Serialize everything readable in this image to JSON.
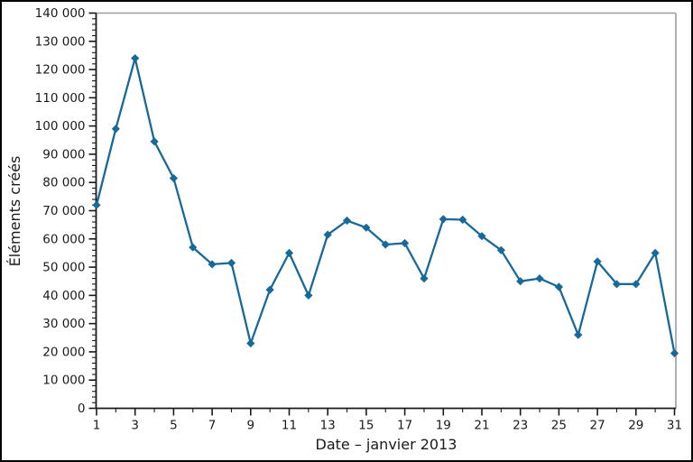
{
  "figure": {
    "background": "#ffffff",
    "border_color": "#000000",
    "frame_color": "#9c9c9c",
    "axis_color": "#1a1a1a",
    "text_color": "#1a1a1a"
  },
  "chart_data": {
    "type": "line",
    "title": "",
    "xlabel": "Date – janvier 2013",
    "ylabel": "Éléments créés",
    "series_color": "#17699a",
    "marker": "diamond",
    "grid": false,
    "legend": "none",
    "xlim": [
      1,
      31
    ],
    "ylim": [
      0,
      140000
    ],
    "y_major_step": 10000,
    "y_minor_step": 2000,
    "x_major_labels_on_odd_days": true,
    "x": [
      1,
      2,
      3,
      4,
      5,
      6,
      7,
      8,
      9,
      10,
      11,
      12,
      13,
      14,
      15,
      16,
      17,
      18,
      19,
      20,
      21,
      22,
      23,
      24,
      25,
      26,
      27,
      28,
      29,
      30,
      31
    ],
    "values": [
      72000,
      99000,
      124000,
      94500,
      81500,
      57000,
      51000,
      51500,
      23000,
      42000,
      55000,
      40000,
      61500,
      66500,
      64000,
      58000,
      58500,
      46000,
      67000,
      66800,
      61000,
      56000,
      45000,
      46000,
      43000,
      26000,
      52000,
      44000,
      44000,
      55000,
      19500
    ],
    "y_tick_labels": [
      "0",
      "10 000",
      "20 000",
      "30 000",
      "40 000",
      "50 000",
      "60 000",
      "70 000",
      "80 000",
      "90 000",
      "100 000",
      "110 000",
      "120 000",
      "130 000",
      "140 000"
    ],
    "x_tick_labels": [
      "1",
      "3",
      "5",
      "7",
      "9",
      "11",
      "13",
      "15",
      "17",
      "19",
      "21",
      "23",
      "25",
      "27",
      "29",
      "31"
    ]
  }
}
